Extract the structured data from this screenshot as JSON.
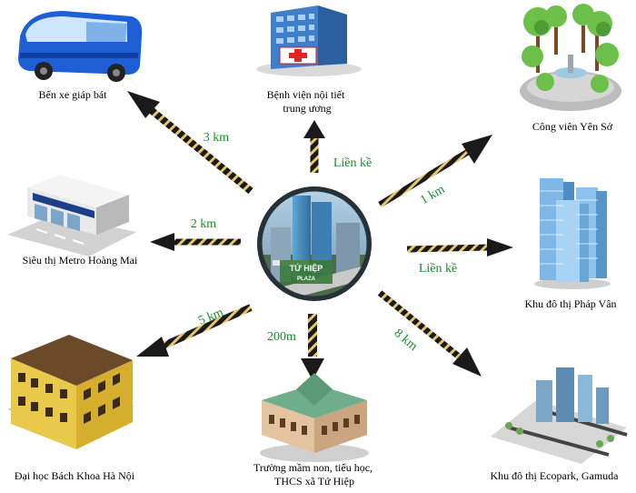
{
  "center": {
    "logo_line1": "TỨ HIỆP",
    "logo_line2": "PLAZA"
  },
  "destinations": [
    {
      "id": "bus",
      "label_lines": [
        "Bến xe giáp bát"
      ],
      "distance": "3 km",
      "icon": "bus-icon"
    },
    {
      "id": "hospital",
      "label_lines": [
        "Bệnh viện nội tiết",
        "trung ương"
      ],
      "distance": "Liền kề",
      "icon": "hospital-icon"
    },
    {
      "id": "park",
      "label_lines": [
        "Công viên Yên Sở"
      ],
      "distance": "1 km",
      "icon": "park-icon"
    },
    {
      "id": "metro",
      "label_lines": [
        "Siêu thị Metro Hoàng Mai"
      ],
      "distance": "2 km",
      "icon": "supermarket-icon"
    },
    {
      "id": "phapvan",
      "label_lines": [
        "Khu đô thị Pháp Vân"
      ],
      "distance": "Liền kề",
      "icon": "towers-icon"
    },
    {
      "id": "bachkhoa",
      "label_lines": [
        "Đại học Bách Khoa Hà Nội"
      ],
      "distance": "5 km",
      "icon": "university-icon"
    },
    {
      "id": "school",
      "label_lines": [
        "Trường mầm non, tiểu học,",
        "THCS xã Tứ Hiệp"
      ],
      "distance": "200m",
      "icon": "school-icon"
    },
    {
      "id": "ecopark",
      "label_lines": [
        "Khu đô thị Ecopark, Gamuda"
      ],
      "distance": "8 km",
      "icon": "city-icon"
    }
  ],
  "colors": {
    "distance_text": "#1b8a2c",
    "arrow_dark": "#1a1a1a",
    "arrow_stripe": "#e8c66a"
  }
}
